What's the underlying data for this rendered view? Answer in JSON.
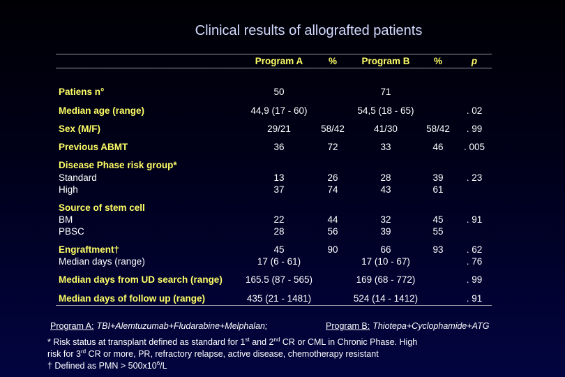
{
  "title": "Clinical results of allografted patients",
  "table": {
    "header": {
      "program_a": "Program A",
      "pct_a": "%",
      "program_b": "Program B",
      "pct_b": "%",
      "p": "p"
    },
    "rows": [
      {
        "label": "Patiens n°",
        "program_a": "50",
        "program_b": "71"
      },
      {
        "label": "Median age (range)",
        "program_a": "44,9 (17 - 60)",
        "program_b": "54,5 (18 - 65)",
        "p": ". 02"
      },
      {
        "label": "Sex (M/F)",
        "program_a": "29/21",
        "pct_a": "58/42",
        "program_b": "41/30",
        "pct_b": "58/42",
        "p": ". 99"
      },
      {
        "label": "Previous ABMT",
        "program_a": "36",
        "pct_a": "72",
        "program_b": "33",
        "pct_b": "46",
        "p": ". 005"
      },
      {
        "label": "Disease Phase risk group*"
      },
      {
        "label": "Standard",
        "program_a": "13",
        "pct_a": "26",
        "program_b": "28",
        "pct_b": "39",
        "p": ". 23"
      },
      {
        "label": "High",
        "program_a": "37",
        "pct_a": "74",
        "program_b": "43",
        "pct_b": "61"
      },
      {
        "label": "Source of stem cell"
      },
      {
        "label": "BM",
        "program_a": "22",
        "pct_a": "44",
        "program_b": "32",
        "pct_b": "45",
        "p": ". 91"
      },
      {
        "label": "PBSC",
        "program_a": "28",
        "pct_a": "56",
        "program_b": "39",
        "pct_b": "55"
      },
      {
        "label": "Engraftment†",
        "program_a": "45",
        "pct_a": "90",
        "program_b": "66",
        "pct_b": "93",
        "p": ". 62"
      },
      {
        "label": "Median days (range)",
        "program_a": "17 (6 - 61)",
        "program_b": "17 (10 - 67)",
        "p": ". 76"
      },
      {
        "label": "Median days from UD search (range)",
        "program_a": "165.5 (87 - 565)",
        "program_b": "169 (68 - 772)",
        "p": ". 99"
      },
      {
        "label": "Median days of follow up (range)",
        "program_a": "435 (21 - 1481)",
        "program_b": "524 (14 - 1412)",
        "p": ". 91"
      }
    ]
  },
  "programs": [
    {
      "label": "Program A:",
      "text": "TBI+Alemtuzumab+Fludarabine+Melphalan;"
    },
    {
      "label": "Program B:",
      "text": "Thiotepa+Cyclophamide+ATG"
    }
  ],
  "footnotes": [
    [
      "* Risk status at transplant defined as standard for 1",
      "st",
      " and 2",
      "nd",
      " CR or CML in Chronic Phase. High"
    ],
    [
      "risk for 3",
      "rd",
      " CR or more, PR, refractory relapse, active disease, chemotherapy resistant"
    ],
    [
      "† Defined as PMN > 500x10",
      "6",
      "/L"
    ]
  ]
}
